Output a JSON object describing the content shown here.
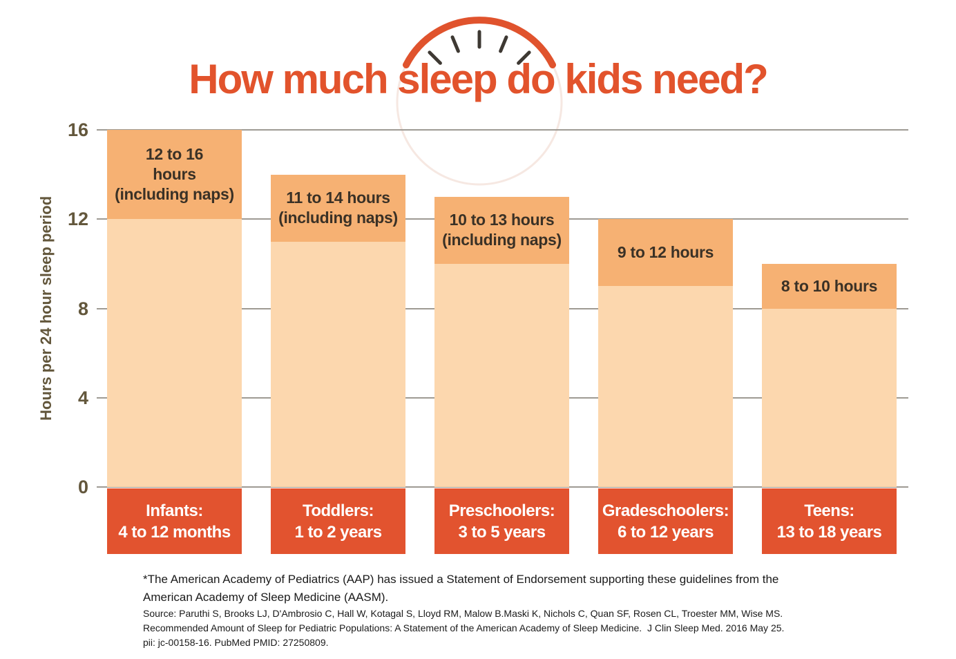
{
  "title": "How much sleep do kids need?",
  "clock_icon": {
    "arc_color": "#E0532D",
    "tick_color": "#3E3933",
    "faint_circle_color": "#F6E8E2"
  },
  "colors": {
    "title": "#E2532C",
    "bar_light": "#FCD7AE",
    "bar_dark": "#F6B173",
    "category_box": "#E2532F",
    "category_text": "#FFFFFF",
    "range_label": "#3A3126",
    "axis_text": "#63573C",
    "gridline": "#9E9A93",
    "footnote_text": "#1A1A1A"
  },
  "chart_data": {
    "type": "bar",
    "title": "How much sleep do kids need?",
    "ylabel": "Hours per 24 hour sleep period",
    "xlabel": "",
    "ylim": [
      0,
      16
    ],
    "yticks": [
      0,
      4,
      8,
      12,
      16
    ],
    "grid": true,
    "legend": false,
    "categories": [
      "Infants: 4 to 12 months",
      "Toddlers: 1 to 2 years",
      "Preschoolers: 3 to 5 years",
      "Gradeschoolers: 6 to 12 years",
      "Teens: 13 to 18 years"
    ],
    "bars": [
      {
        "group": "Infants:",
        "age_range": "4 to 12 months",
        "min_hours": 12,
        "max_hours": 16,
        "range_label_lines": [
          "12 to 16",
          "hours",
          "(including naps)"
        ]
      },
      {
        "group": "Toddlers:",
        "age_range": "1 to 2 years",
        "min_hours": 11,
        "max_hours": 14,
        "range_label_lines": [
          "11 to 14 hours",
          "(including naps)"
        ]
      },
      {
        "group": "Preschoolers:",
        "age_range": "3 to 5 years",
        "min_hours": 10,
        "max_hours": 13,
        "range_label_lines": [
          "10 to 13 hours",
          "(including naps)"
        ]
      },
      {
        "group": "Gradeschoolers:",
        "age_range": "6 to 12 years",
        "min_hours": 9,
        "max_hours": 12,
        "range_label_lines": [
          "9 to 12 hours"
        ]
      },
      {
        "group": "Teens:",
        "age_range": "13 to 18 years",
        "min_hours": 8,
        "max_hours": 10,
        "range_label_lines": [
          "8 to 10 hours"
        ]
      }
    ]
  },
  "footnotes": {
    "endorsement_lines": [
      "*The American Academy of Pediatrics (AAP) has issued a Statement of Endorsement supporting these guidelines from the",
      "American Academy of Sleep Medicine (AASM)."
    ],
    "source_lines": [
      "Source: Paruthi S, Brooks LJ, D'Ambrosio C, Hall W, Kotagal S, Lloyd RM, Malow B.Maski K, Nichols C, Quan SF, Rosen CL, Troester MM, Wise MS.",
      "Recommended Amount of Sleep for Pediatric Populations: A Statement of the American Academy of Sleep Medicine.  J Clin Sleep Med. 2016 May 25.",
      "pii: jc-00158-16. PubMed PMID: 27250809."
    ]
  }
}
